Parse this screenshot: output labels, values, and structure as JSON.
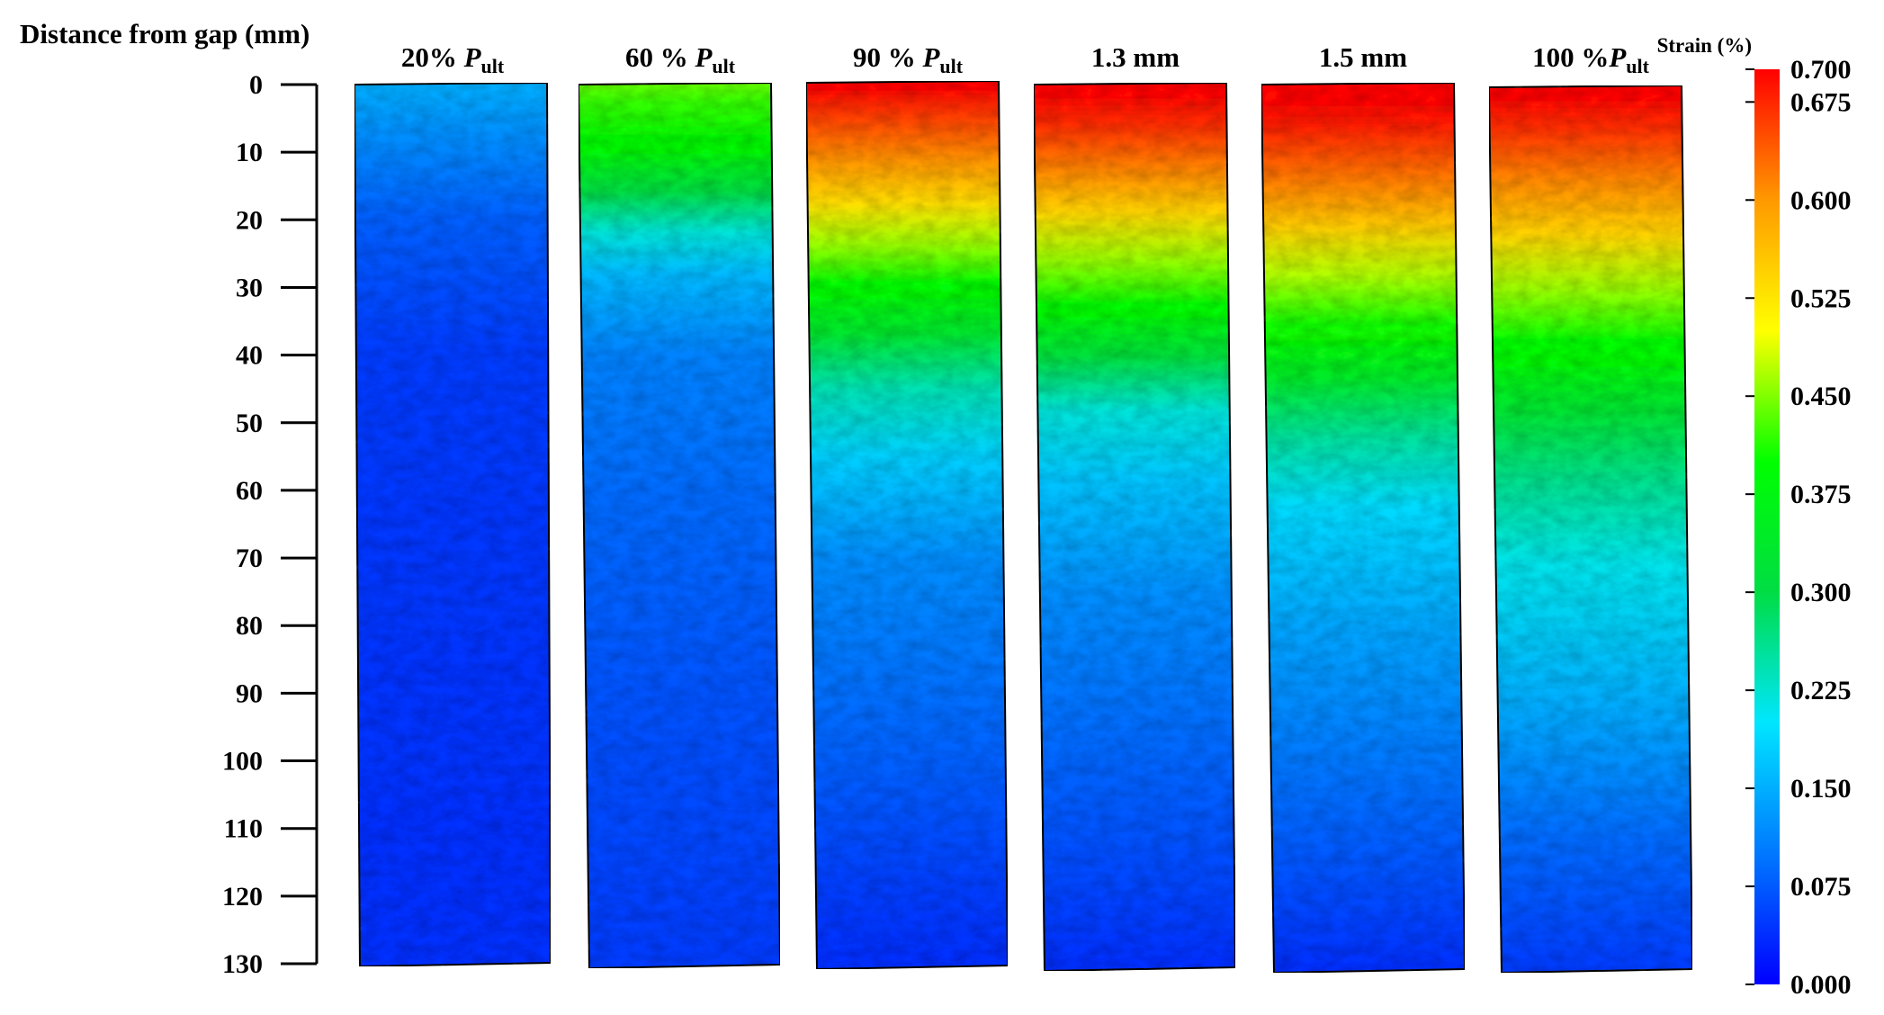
{
  "chart_data": {
    "type": "heatmap",
    "ylabel": "Distance from gap (mm)",
    "y_ticks": [
      "0",
      "10",
      "20",
      "30",
      "40",
      "50",
      "60",
      "70",
      "80",
      "90",
      "100",
      "110",
      "120",
      "130"
    ],
    "y_values": [
      0,
      10,
      20,
      30,
      40,
      50,
      60,
      70,
      80,
      90,
      100,
      110,
      120,
      130
    ],
    "ylim": [
      0,
      130
    ],
    "panels": [
      {
        "label": "20% ",
        "label_italic": "P",
        "label_sub": "ult",
        "strain_profile": [
          [
            0,
            0.15
          ],
          [
            8,
            0.12
          ],
          [
            20,
            0.08
          ],
          [
            40,
            0.05
          ],
          [
            130,
            0.04
          ]
        ]
      },
      {
        "label": "60 % ",
        "label_italic": "P",
        "label_sub": "ult",
        "strain_profile": [
          [
            0,
            0.44
          ],
          [
            3,
            0.42
          ],
          [
            10,
            0.38
          ],
          [
            16,
            0.3
          ],
          [
            22,
            0.22
          ],
          [
            28,
            0.16
          ],
          [
            40,
            0.11
          ],
          [
            60,
            0.09
          ],
          [
            90,
            0.07
          ],
          [
            130,
            0.05
          ]
        ]
      },
      {
        "label": "90 % ",
        "label_italic": "P",
        "label_sub": "ult",
        "strain_profile": [
          [
            0,
            0.7
          ],
          [
            5,
            0.66
          ],
          [
            12,
            0.6
          ],
          [
            18,
            0.53
          ],
          [
            24,
            0.46
          ],
          [
            30,
            0.39
          ],
          [
            37,
            0.33
          ],
          [
            45,
            0.24
          ],
          [
            55,
            0.18
          ],
          [
            70,
            0.12
          ],
          [
            100,
            0.08
          ],
          [
            120,
            0.05
          ],
          [
            130,
            0.04
          ]
        ]
      },
      {
        "label": "1.3 mm",
        "label_italic": "",
        "label_sub": "",
        "strain_profile": [
          [
            0,
            0.7
          ],
          [
            6,
            0.67
          ],
          [
            13,
            0.61
          ],
          [
            19,
            0.54
          ],
          [
            26,
            0.46
          ],
          [
            33,
            0.39
          ],
          [
            40,
            0.31
          ],
          [
            48,
            0.22
          ],
          [
            58,
            0.17
          ],
          [
            75,
            0.12
          ],
          [
            110,
            0.07
          ],
          [
            130,
            0.04
          ]
        ]
      },
      {
        "label": "1.5 mm",
        "label_italic": "",
        "label_sub": "",
        "strain_profile": [
          [
            0,
            0.7
          ],
          [
            6,
            0.68
          ],
          [
            14,
            0.62
          ],
          [
            21,
            0.55
          ],
          [
            28,
            0.47
          ],
          [
            35,
            0.41
          ],
          [
            43,
            0.34
          ],
          [
            52,
            0.25
          ],
          [
            62,
            0.19
          ],
          [
            80,
            0.14
          ],
          [
            110,
            0.08
          ],
          [
            130,
            0.04
          ]
        ]
      },
      {
        "label": "100 %",
        "label_italic": "P",
        "label_sub": "ult",
        "strain_profile": [
          [
            0,
            0.7
          ],
          [
            6,
            0.67
          ],
          [
            14,
            0.61
          ],
          [
            22,
            0.54
          ],
          [
            30,
            0.46
          ],
          [
            38,
            0.4
          ],
          [
            48,
            0.32
          ],
          [
            58,
            0.26
          ],
          [
            70,
            0.21
          ],
          [
            90,
            0.15
          ],
          [
            110,
            0.09
          ],
          [
            130,
            0.05
          ]
        ]
      }
    ],
    "colorbar": {
      "title": "Strain (%)",
      "min": 0.0,
      "max": 0.7,
      "ticks": [
        "0.700",
        "0.675",
        "0.600",
        "0.525",
        "0.450",
        "0.375",
        "0.300",
        "0.225",
        "0.150",
        "0.075",
        "0.000"
      ],
      "tick_values": [
        0.7,
        0.675,
        0.6,
        0.525,
        0.45,
        0.375,
        0.3,
        0.225,
        0.15,
        0.075,
        0.0
      ],
      "colors": [
        "#0000ff",
        "#0078ff",
        "#00e6ff",
        "#00dd44",
        "#00ff00",
        "#ffff00",
        "#ff9900",
        "#ff0000"
      ]
    },
    "grid": false,
    "legend": "right"
  }
}
